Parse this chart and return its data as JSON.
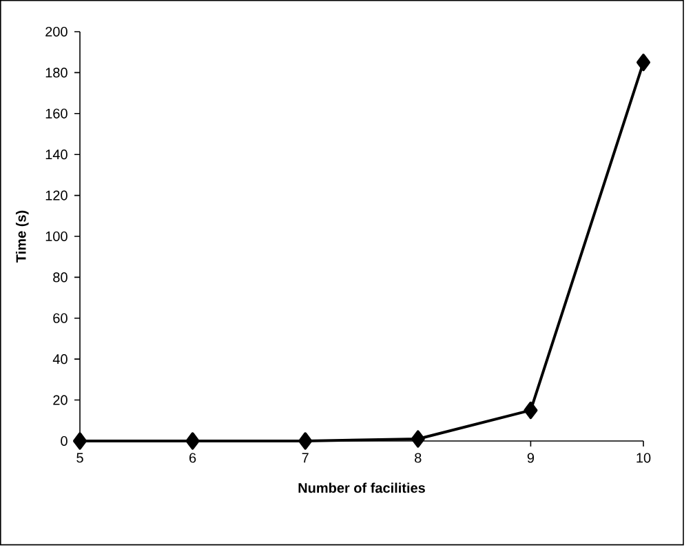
{
  "chart_data": {
    "type": "line",
    "xlabel": "Number of facilities",
    "ylabel": "Time (s)",
    "x": [
      5,
      6,
      7,
      8,
      9,
      10
    ],
    "values": [
      0,
      0,
      0,
      1,
      15,
      185
    ],
    "color": "#000000",
    "xlim": [
      5,
      10
    ],
    "ylim": [
      0,
      200
    ],
    "xticks": [
      5,
      6,
      7,
      8,
      9,
      10
    ],
    "yticks": [
      0,
      20,
      40,
      60,
      80,
      100,
      120,
      140,
      160,
      180,
      200
    ],
    "marker": "diamond",
    "line_style": "solid"
  }
}
